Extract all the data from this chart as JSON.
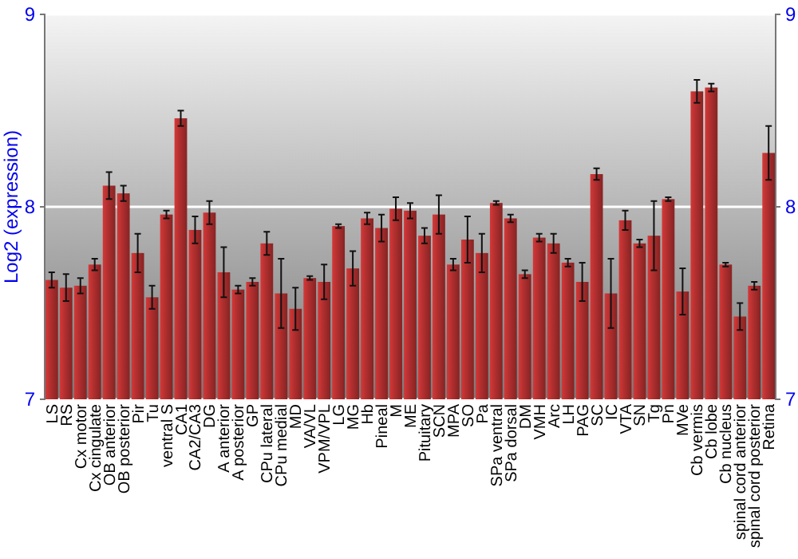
{
  "chart_data": {
    "type": "bar",
    "ylabel": "Log2 (expression)",
    "categories": [
      "LS",
      "RS",
      "Cx motor",
      "Cx cingulate",
      "OB anterior",
      "OB posterior",
      "Pir",
      "Tu",
      "ventral S",
      "CA1",
      "CA2/CA3",
      "DG",
      "A anterior",
      "A posterior",
      "GP",
      "CPu lateral",
      "CPu medial",
      "MD",
      "VA/VL",
      "VPM/VPL",
      "LG",
      "MG",
      "Hb",
      "Pineal",
      "M",
      "ME",
      "Pituitary",
      "SCN",
      "MPA",
      "SO",
      "Pa",
      "SPa ventral",
      "SPa dorsal",
      "DM",
      "VMH",
      "Arc",
      "LH",
      "PAG",
      "SC",
      "IC",
      "VTA",
      "SN",
      "Tg",
      "Pn",
      "MVe",
      "Cb vermis",
      "Cb lobe",
      "Cb nucleus",
      "spinal cord anterior",
      "spinal cord posterior",
      "Retina"
    ],
    "values": [
      7.62,
      7.58,
      7.59,
      7.7,
      8.11,
      8.07,
      7.76,
      7.53,
      7.96,
      8.46,
      7.88,
      7.97,
      7.66,
      7.57,
      7.61,
      7.81,
      7.55,
      7.47,
      7.63,
      7.61,
      7.9,
      7.68,
      7.94,
      7.89,
      7.99,
      7.98,
      7.85,
      7.96,
      7.7,
      7.83,
      7.76,
      8.02,
      7.94,
      7.65,
      7.84,
      7.81,
      7.71,
      7.61,
      8.17,
      7.55,
      7.93,
      7.81,
      7.85,
      8.04,
      7.56,
      8.6,
      8.62,
      7.7,
      7.43,
      7.59,
      8.28
    ],
    "errors": [
      0.04,
      0.07,
      0.04,
      0.03,
      0.07,
      0.04,
      0.1,
      0.06,
      0.02,
      0.04,
      0.07,
      0.06,
      0.13,
      0.02,
      0.02,
      0.06,
      0.18,
      0.11,
      0.01,
      0.09,
      0.01,
      0.09,
      0.03,
      0.07,
      0.06,
      0.04,
      0.04,
      0.1,
      0.03,
      0.12,
      0.1,
      0.01,
      0.02,
      0.02,
      0.02,
      0.05,
      0.02,
      0.1,
      0.03,
      0.18,
      0.05,
      0.02,
      0.18,
      0.01,
      0.12,
      0.06,
      0.02,
      0.01,
      0.07,
      0.02,
      0.14
    ],
    "color": "#b22f2f",
    "ylim": [
      7,
      9
    ],
    "yticks": [
      7,
      8,
      9
    ],
    "y2lim": [
      7,
      9
    ],
    "y2ticks": [
      7,
      8,
      9
    ],
    "grid": "y"
  }
}
